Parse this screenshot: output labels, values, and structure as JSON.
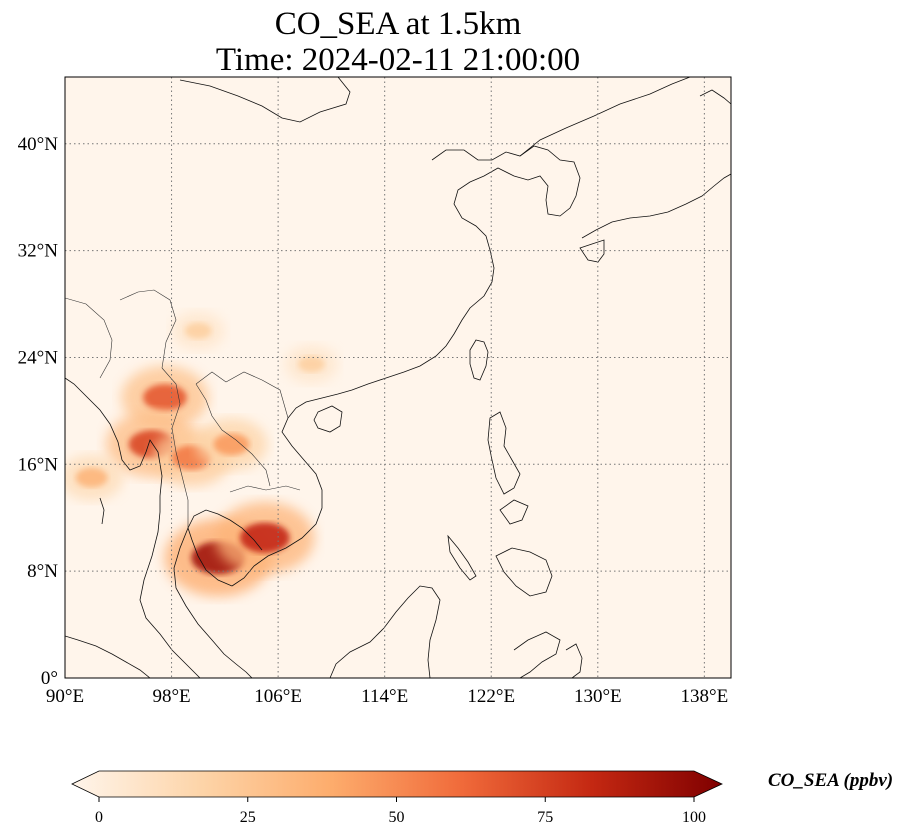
{
  "title": {
    "line1": "CO_SEA at 1.5km",
    "line2": "Time: 2024-02-11 21:00:00"
  },
  "map": {
    "type": "map",
    "lon_range": [
      90,
      140
    ],
    "lat_range": [
      0,
      45
    ],
    "lon_ticks": [
      {
        "value": 90,
        "label": "90°E"
      },
      {
        "value": 98,
        "label": "98°E"
      },
      {
        "value": 106,
        "label": "106°E"
      },
      {
        "value": 114,
        "label": "114°E"
      },
      {
        "value": 122,
        "label": "122°E"
      },
      {
        "value": 130,
        "label": "130°E"
      },
      {
        "value": 138,
        "label": "138°E"
      }
    ],
    "lat_ticks": [
      {
        "value": 0,
        "label": "0°"
      },
      {
        "value": 8,
        "label": "8°N"
      },
      {
        "value": 16,
        "label": "16°N"
      },
      {
        "value": 24,
        "label": "24°N"
      },
      {
        "value": 32,
        "label": "32°N"
      },
      {
        "value": 40,
        "label": "40°N"
      }
    ],
    "gridlines": "dotted",
    "background_color": "#fff5eb",
    "plumes": [
      {
        "lon": 101.5,
        "lat": 9.0,
        "value": 90
      },
      {
        "lon": 105.0,
        "lat": 10.5,
        "value": 80
      },
      {
        "lon": 97.5,
        "lat": 21.0,
        "value": 65
      },
      {
        "lon": 96.5,
        "lat": 17.5,
        "value": 70
      },
      {
        "lon": 99.5,
        "lat": 16.5,
        "value": 55
      },
      {
        "lon": 102.5,
        "lat": 17.5,
        "value": 45
      },
      {
        "lon": 92.0,
        "lat": 15.0,
        "value": 35
      },
      {
        "lon": 100.0,
        "lat": 26.0,
        "value": 22
      },
      {
        "lon": 108.5,
        "lat": 23.5,
        "value": 22
      }
    ]
  },
  "colorbar": {
    "label": "CO_SEA (ppbv)",
    "min": 0,
    "max": 100,
    "ticks": [
      {
        "value": 0,
        "label": "0"
      },
      {
        "value": 25,
        "label": "25"
      },
      {
        "value": 50,
        "label": "50"
      },
      {
        "value": 75,
        "label": "75"
      },
      {
        "value": 100,
        "label": "100"
      }
    ],
    "extend": "both",
    "colors": [
      "#fff5eb",
      "#fdd4a8",
      "#fdac6c",
      "#f06a3a",
      "#c42812",
      "#7f0000"
    ]
  }
}
